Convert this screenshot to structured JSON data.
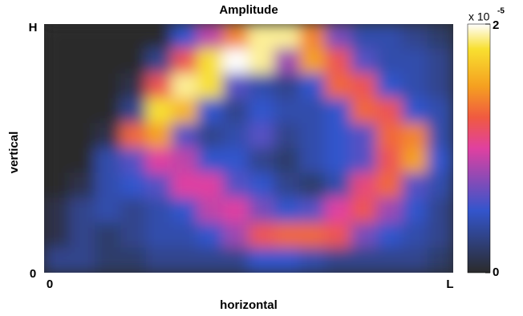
{
  "chart_data": {
    "type": "heatmap",
    "title": "Amplitude",
    "x_label": "horizontal",
    "y_label": "vertical",
    "xticks": [
      "0",
      "L"
    ],
    "yticks": [
      "H",
      "0"
    ],
    "values": [
      [
        0,
        0,
        0,
        0,
        0,
        0.5,
        0.9,
        1.4,
        1.9,
        1.9,
        1.4,
        0.7,
        0.4,
        0.4,
        0.3,
        0.2
      ],
      [
        0,
        0,
        0,
        0,
        0.3,
        1.2,
        1.8,
        2,
        1.9,
        0.8,
        1.5,
        1.2,
        0.6,
        0.4,
        0.4,
        0.3
      ],
      [
        0,
        0,
        0,
        0.1,
        1.2,
        1.9,
        1.8,
        0.6,
        0.4,
        0.3,
        0.5,
        1.3,
        1.2,
        0.5,
        0.4,
        0.3
      ],
      [
        0,
        0,
        0,
        0.3,
        1.8,
        1.6,
        0.5,
        0.3,
        0.5,
        0.4,
        0.4,
        0.5,
        1.3,
        1.2,
        0.5,
        0.4
      ],
      [
        0,
        0,
        0.1,
        1.3,
        1.5,
        0.6,
        0.3,
        0.4,
        0.6,
        0.3,
        0.4,
        0.5,
        0.6,
        1.3,
        1.4,
        0.4
      ],
      [
        0,
        0,
        0.4,
        0.6,
        1.0,
        0.9,
        0.5,
        0.5,
        0.3,
        0.2,
        0.4,
        0.5,
        0.6,
        1.2,
        1.5,
        0.5
      ],
      [
        0,
        0.1,
        0.4,
        0.5,
        0.6,
        1.0,
        1.0,
        0.6,
        0.5,
        0.3,
        0.2,
        0.4,
        1.1,
        1.3,
        0.6,
        0.4
      ],
      [
        0.1,
        0.3,
        0.4,
        0.3,
        0.4,
        0.5,
        0.9,
        1.0,
        0.7,
        0.5,
        0.6,
        1.0,
        1.2,
        0.8,
        0.5,
        0.3
      ],
      [
        0.1,
        0.3,
        0.2,
        0.3,
        0.4,
        0.4,
        0.5,
        0.8,
        1.2,
        1.3,
        1.3,
        1.2,
        0.7,
        0.5,
        0.4,
        0.3
      ],
      [
        0.3,
        0.3,
        0.2,
        0.2,
        0.3,
        0.3,
        0.3,
        0.3,
        0.5,
        0.5,
        0.4,
        0.3,
        0.3,
        0.3,
        0.3,
        0.2
      ]
    ],
    "colorbar": {
      "clim": [
        0,
        2
      ],
      "ticks": [
        0,
        2
      ],
      "multiplier": "x 10",
      "exponent": "-5"
    },
    "colormap": [
      {
        "value": 0,
        "color": "#2b2b2b"
      },
      {
        "value": 0.5,
        "color": "#3355cc"
      },
      {
        "value": 1.0,
        "color": "#e040a0"
      },
      {
        "value": 1.25,
        "color": "#f05a40"
      },
      {
        "value": 1.5,
        "color": "#f5a020"
      },
      {
        "value": 1.8,
        "color": "#f8e030"
      },
      {
        "value": 2,
        "color": "#ffffff"
      }
    ]
  }
}
